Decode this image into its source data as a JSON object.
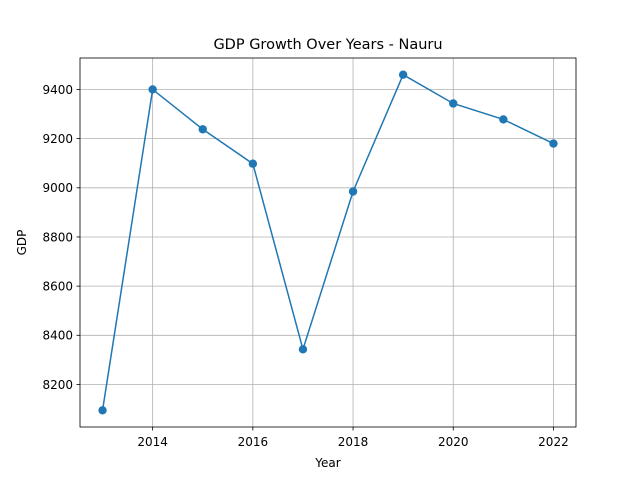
{
  "chart_data": {
    "type": "line",
    "title": "GDP Growth Over Years - Nauru",
    "xlabel": "Year",
    "ylabel": "GDP",
    "x": [
      2013,
      2014,
      2015,
      2016,
      2017,
      2018,
      2019,
      2020,
      2021,
      2022
    ],
    "series": [
      {
        "name": "",
        "values": [
          8095,
          9400,
          9238,
          9098,
          8343,
          8985,
          9460,
          9343,
          9278,
          9180
        ],
        "color": "#1f77b4",
        "marker": "circle"
      }
    ],
    "xlim": [
      2012.55,
      2022.45
    ],
    "ylim": [
      8027,
      9528
    ],
    "xticks": [
      2014,
      2016,
      2018,
      2020,
      2022
    ],
    "xtick_labels": [
      "2014",
      "2016",
      "2018",
      "2020",
      "2022"
    ],
    "yticks": [
      8200,
      8400,
      8600,
      8800,
      9000,
      9200,
      9400
    ],
    "ytick_labels": [
      "8200",
      "8400",
      "8600",
      "8800",
      "9000",
      "9200",
      "9400"
    ],
    "grid": true,
    "legend": "none"
  }
}
